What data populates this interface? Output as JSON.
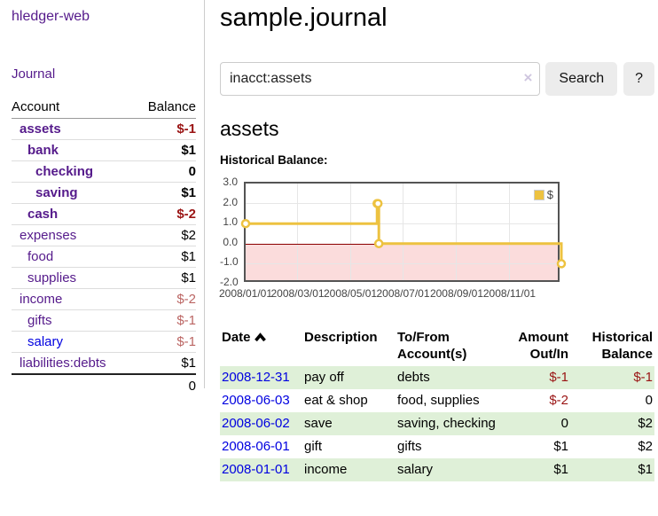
{
  "app": {
    "brand": "hledger-web"
  },
  "colors": {
    "accent_purple": "#551a8b",
    "link_blue": "#0000e0",
    "negative_strong": "#9a1414",
    "negative_muted": "#bb6563",
    "stripe_green": "#dff0d8",
    "chart_line_gold": "#edc240"
  },
  "sidebar": {
    "journal_label": "Journal",
    "accounts": {
      "header_account": "Account",
      "header_balance": "Balance",
      "rows": [
        {
          "name": "assets",
          "balance": "$-1"
        },
        {
          "name": "bank",
          "balance": "$1"
        },
        {
          "name": "checking",
          "balance": "0"
        },
        {
          "name": "saving",
          "balance": "$1"
        },
        {
          "name": "cash",
          "balance": "$-2"
        },
        {
          "name": "expenses",
          "balance": "$2"
        },
        {
          "name": "food",
          "balance": "$1"
        },
        {
          "name": "supplies",
          "balance": "$1"
        },
        {
          "name": "income",
          "balance": "$-2"
        },
        {
          "name": "gifts",
          "balance": "$-1"
        },
        {
          "name": "salary",
          "balance": "$-1"
        },
        {
          "name": "liabilities:debts",
          "balance": "$1"
        }
      ],
      "total": "0"
    }
  },
  "main": {
    "title": "sample.journal",
    "search": {
      "value": "inacct:assets",
      "clear_icon": "×",
      "button_label": "Search",
      "help_label": "?"
    },
    "account_heading": "assets",
    "chart_label": "Historical Balance:",
    "register": {
      "headers": {
        "date": "Date",
        "description": "Description",
        "accounts": "To/From Account(s)",
        "amount": "Amount Out/In",
        "balance": "Historical Balance"
      },
      "rows": [
        {
          "date": "2008-12-31",
          "description": "pay off",
          "accounts": "debts",
          "amount": "$-1",
          "balance": "$-1"
        },
        {
          "date": "2008-06-03",
          "description": "eat & shop",
          "accounts": "food, supplies",
          "amount": "$-2",
          "balance": "0"
        },
        {
          "date": "2008-06-02",
          "description": "save",
          "accounts": "saving, checking",
          "amount": "0",
          "balance": "$2"
        },
        {
          "date": "2008-06-01",
          "description": "gift",
          "accounts": "gifts",
          "amount": "$1",
          "balance": "$2"
        },
        {
          "date": "2008-01-01",
          "description": "income",
          "accounts": "salary",
          "amount": "$1",
          "balance": "$1"
        }
      ]
    }
  },
  "chart_data": {
    "type": "line",
    "step": true,
    "title": "Historical Balance:",
    "series": [
      {
        "name": "$",
        "color": "#edc240",
        "points": [
          [
            "2008-01-01",
            1
          ],
          [
            "2008-06-01",
            2
          ],
          [
            "2008-06-02",
            2
          ],
          [
            "2008-06-03",
            0
          ],
          [
            "2008-12-31",
            -1
          ]
        ]
      }
    ],
    "x_ticks": [
      "2008/01/01",
      "2008/03/01",
      "2008/05/01",
      "2008/07/01",
      "2008/09/01",
      "2008/11/01"
    ],
    "y_ticks": [
      "3.0",
      "2.0",
      "1.0",
      "0.0",
      "-1.0",
      "-2.0"
    ],
    "xlim": [
      "2008-01-01",
      "2008-12-31"
    ],
    "ylim": [
      -2,
      3
    ],
    "legend_position": "top-right",
    "grid": true,
    "zero_line_color": "#8b0000",
    "negative_region_color": "#fbdcdc"
  }
}
